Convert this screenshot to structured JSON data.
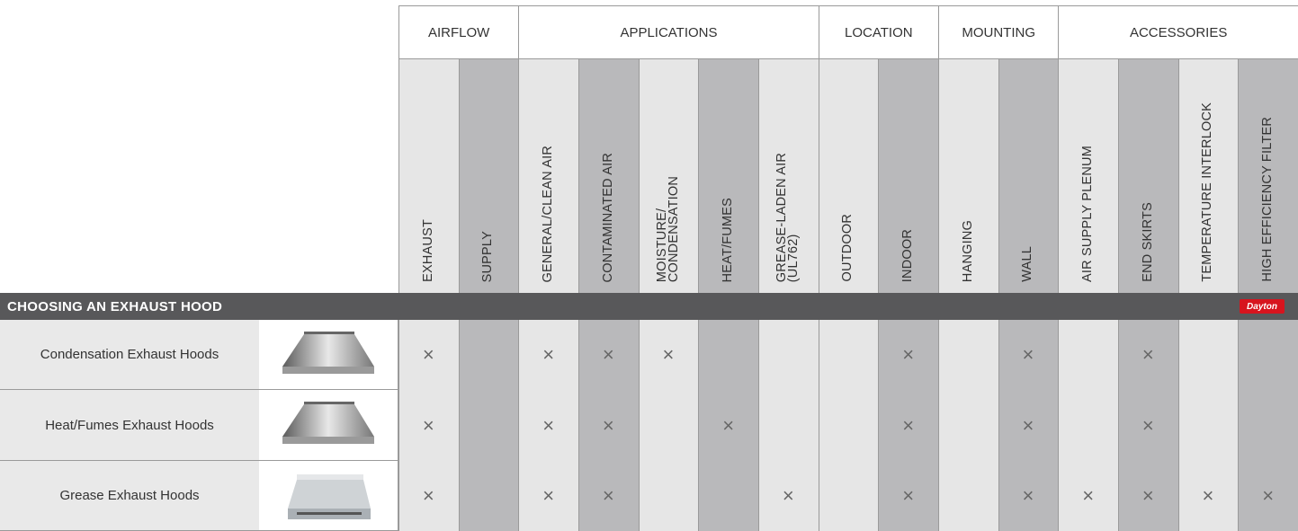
{
  "band_title": "CHOOSING AN EXHAUST HOOD",
  "brand": "Dayton",
  "groups": [
    {
      "label": "AIRFLOW",
      "columns": [
        "EXHAUST",
        "SUPPLY"
      ]
    },
    {
      "label": "APPLICATIONS",
      "columns": [
        "GENERAL/CLEAN AIR",
        "CONTAMINATED AIR",
        "MOISTURE/\nCONDENSATION",
        "HEAT/FUMES",
        "GREASE-LADEN AIR\n(UL762)"
      ]
    },
    {
      "label": "LOCATION",
      "columns": [
        "OUTDOOR",
        "INDOOR"
      ]
    },
    {
      "label": "MOUNTING",
      "columns": [
        "HANGING",
        "WALL"
      ]
    },
    {
      "label": "ACCESSORIES",
      "columns": [
        "AIR SUPPLY PLENUM",
        "END SKIRTS",
        "TEMPERATURE INTERLOCK",
        "HIGH EFFICIENCY FILTER"
      ]
    }
  ],
  "rows": [
    {
      "name": "Condensation Exhaust Hoods",
      "cells": [
        "×",
        null,
        "×",
        "×",
        "×",
        null,
        null,
        null,
        "×",
        null,
        "×",
        null,
        "×",
        null,
        null
      ]
    },
    {
      "name": "Heat/Fumes Exhaust Hoods",
      "cells": [
        "×",
        null,
        "×",
        "×",
        null,
        "×",
        null,
        null,
        "×",
        null,
        "×",
        null,
        "×",
        null,
        null
      ]
    },
    {
      "name": "Grease Exhaust Hoods",
      "cells": [
        "×",
        null,
        "×",
        "×",
        null,
        null,
        "×",
        null,
        "×",
        null,
        "×",
        "×",
        "×",
        "×",
        "×"
      ]
    }
  ]
}
